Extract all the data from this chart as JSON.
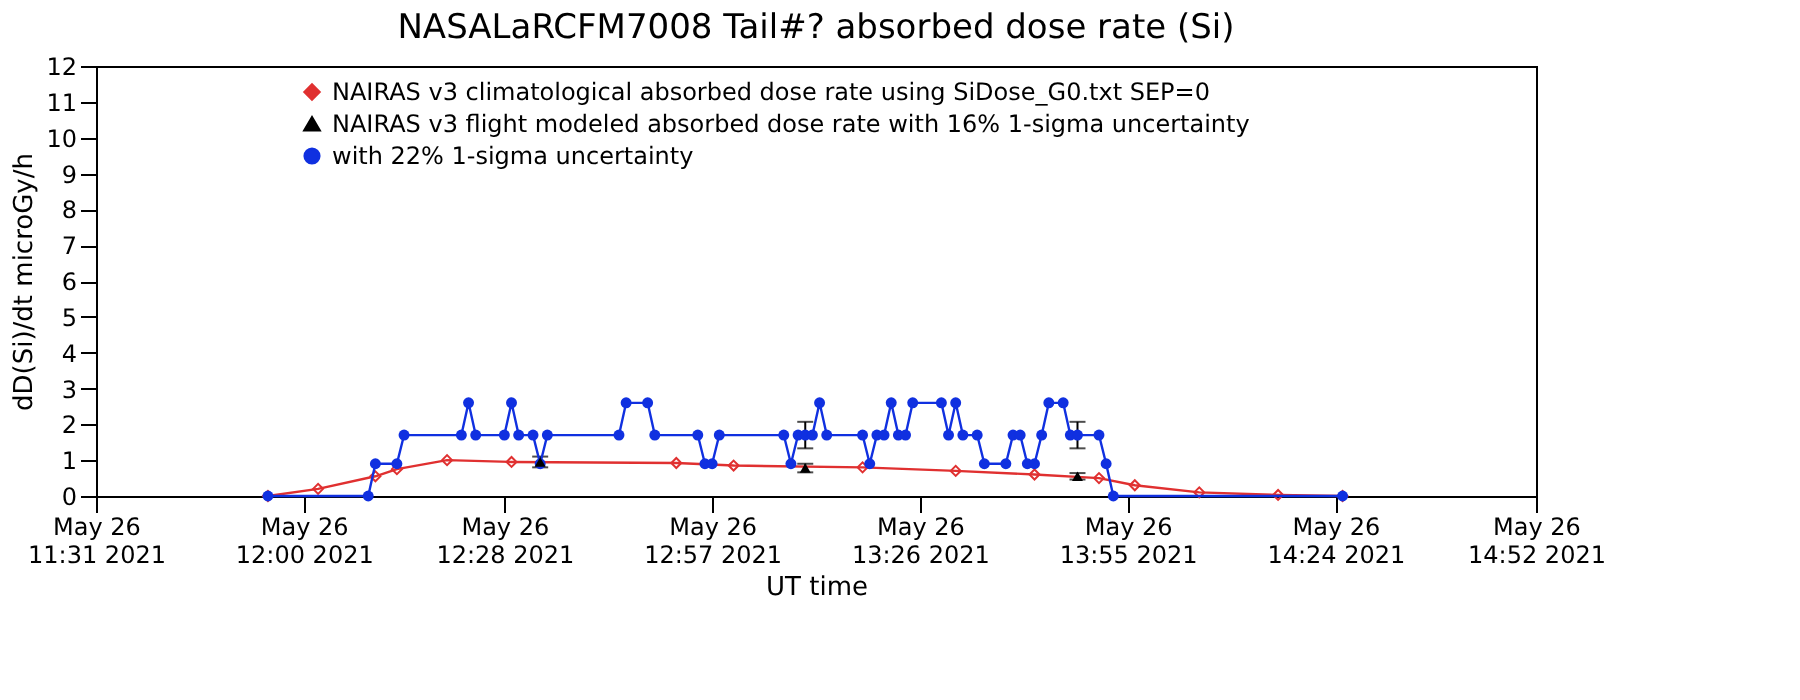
{
  "chart_data": {
    "type": "line",
    "title": "NASALaRCFM7008  Tail#? absorbed dose rate (Si)",
    "xlabel": "UT time",
    "ylabel": "dD(Si)/dt microGy/h",
    "xlim": [
      "2021-05-26T11:31",
      "2021-05-26T14:52"
    ],
    "xticks": [
      {
        "value": "2021-05-26T11:31",
        "label": "May 26\n11:31 2021"
      },
      {
        "value": "2021-05-26T12:00",
        "label": "May 26\n12:00 2021"
      },
      {
        "value": "2021-05-26T12:28",
        "label": "May 26\n12:28 2021"
      },
      {
        "value": "2021-05-26T12:57",
        "label": "May 26\n12:57 2021"
      },
      {
        "value": "2021-05-26T13:26",
        "label": "May 26\n13:26 2021"
      },
      {
        "value": "2021-05-26T13:55",
        "label": "May 26\n13:55 2021"
      },
      {
        "value": "2021-05-26T14:24",
        "label": "May 26\n14:24 2021"
      },
      {
        "value": "2021-05-26T14:52",
        "label": "May 26\n14:52 2021"
      }
    ],
    "ylim": [
      0,
      12
    ],
    "yticks": [
      0,
      1,
      2,
      3,
      4,
      5,
      6,
      7,
      8,
      9,
      10,
      11,
      12
    ],
    "grid": false,
    "legend": "top left",
    "series": [
      {
        "name": "NAIRAS v3 climatological absorbed dose rate using SiDose_G0.txt SEP=0",
        "marker": "diamond",
        "color": "#e03030",
        "x": [
          "2021-05-26T11:55",
          "2021-05-26T12:02",
          "2021-05-26T12:10",
          "2021-05-26T12:13",
          "2021-05-26T12:20",
          "2021-05-26T12:29",
          "2021-05-26T12:52",
          "2021-05-26T13:00",
          "2021-05-26T13:18",
          "2021-05-26T13:31",
          "2021-05-26T13:42",
          "2021-05-26T13:51",
          "2021-05-26T13:56",
          "2021-05-26T14:05",
          "2021-05-26T14:16",
          "2021-05-26T14:25"
        ],
        "values": [
          0,
          0.2,
          0.55,
          0.75,
          1.0,
          0.95,
          0.92,
          0.85,
          0.8,
          0.7,
          0.6,
          0.5,
          0.3,
          0.1,
          0.03,
          0
        ]
      },
      {
        "name": "NAIRAS v3 flight modeled absorbed dose rate with 16% 1-sigma uncertainty",
        "type": "scatter",
        "marker": "triangle",
        "color": "#000000",
        "x": [
          "2021-05-26T12:33",
          "2021-05-26T13:10",
          "2021-05-26T13:48"
        ],
        "values": [
          0.95,
          0.78,
          0.55
        ],
        "errors": [
          0.15,
          0.12,
          0.09
        ]
      },
      {
        "name": "with 22% 1-sigma uncertainty",
        "marker": "circle",
        "color": "#1030e0",
        "x": [
          "2021-05-26T11:55",
          "2021-05-26T12:09",
          "2021-05-26T12:10",
          "2021-05-26T12:13",
          "2021-05-26T12:14",
          "2021-05-26T12:22",
          "2021-05-26T12:23",
          "2021-05-26T12:24",
          "2021-05-26T12:28",
          "2021-05-26T12:29",
          "2021-05-26T12:30",
          "2021-05-26T12:32",
          "2021-05-26T12:33",
          "2021-05-26T12:34",
          "2021-05-26T12:44",
          "2021-05-26T12:45",
          "2021-05-26T12:48",
          "2021-05-26T12:49",
          "2021-05-26T12:55",
          "2021-05-26T12:56",
          "2021-05-26T12:57",
          "2021-05-26T12:58",
          "2021-05-26T13:07",
          "2021-05-26T13:08",
          "2021-05-26T13:09",
          "2021-05-26T13:10",
          "2021-05-26T13:11",
          "2021-05-26T13:12",
          "2021-05-26T13:13",
          "2021-05-26T13:18",
          "2021-05-26T13:19",
          "2021-05-26T13:20",
          "2021-05-26T13:21",
          "2021-05-26T13:22",
          "2021-05-26T13:23",
          "2021-05-26T13:24",
          "2021-05-26T13:25",
          "2021-05-26T13:29",
          "2021-05-26T13:30",
          "2021-05-26T13:31",
          "2021-05-26T13:32",
          "2021-05-26T13:34",
          "2021-05-26T13:35",
          "2021-05-26T13:38",
          "2021-05-26T13:39",
          "2021-05-26T13:40",
          "2021-05-26T13:41",
          "2021-05-26T13:42",
          "2021-05-26T13:43",
          "2021-05-26T13:44",
          "2021-05-26T13:46",
          "2021-05-26T13:47",
          "2021-05-26T13:48",
          "2021-05-26T13:51",
          "2021-05-26T13:52",
          "2021-05-26T13:53",
          "2021-05-26T14:25"
        ],
        "values": [
          0,
          0,
          0.9,
          0.9,
          1.7,
          1.7,
          2.6,
          1.7,
          1.7,
          2.6,
          1.7,
          1.7,
          0.9,
          1.7,
          1.7,
          2.6,
          2.6,
          1.7,
          1.7,
          0.9,
          0.9,
          1.7,
          1.7,
          0.9,
          1.7,
          1.7,
          1.7,
          2.6,
          1.7,
          1.7,
          0.9,
          1.7,
          1.7,
          2.6,
          1.7,
          1.7,
          2.6,
          2.6,
          1.7,
          2.6,
          1.7,
          1.7,
          0.9,
          0.9,
          1.7,
          1.7,
          0.9,
          0.9,
          1.7,
          2.6,
          2.6,
          1.7,
          1.7,
          1.7,
          0.9,
          0,
          0
        ],
        "errors": [
          null,
          null,
          null,
          null,
          null,
          null,
          null,
          null,
          null,
          null,
          null,
          null,
          null,
          null,
          null,
          null,
          null,
          null,
          null,
          null,
          null,
          null,
          null,
          null,
          null,
          0.37,
          null,
          null,
          null,
          null,
          null,
          null,
          null,
          null,
          null,
          null,
          null,
          null,
          null,
          null,
          null,
          null,
          null,
          null,
          null,
          null,
          null,
          null,
          null,
          null,
          null,
          null,
          0.37,
          null,
          null,
          null,
          null
        ]
      }
    ]
  }
}
